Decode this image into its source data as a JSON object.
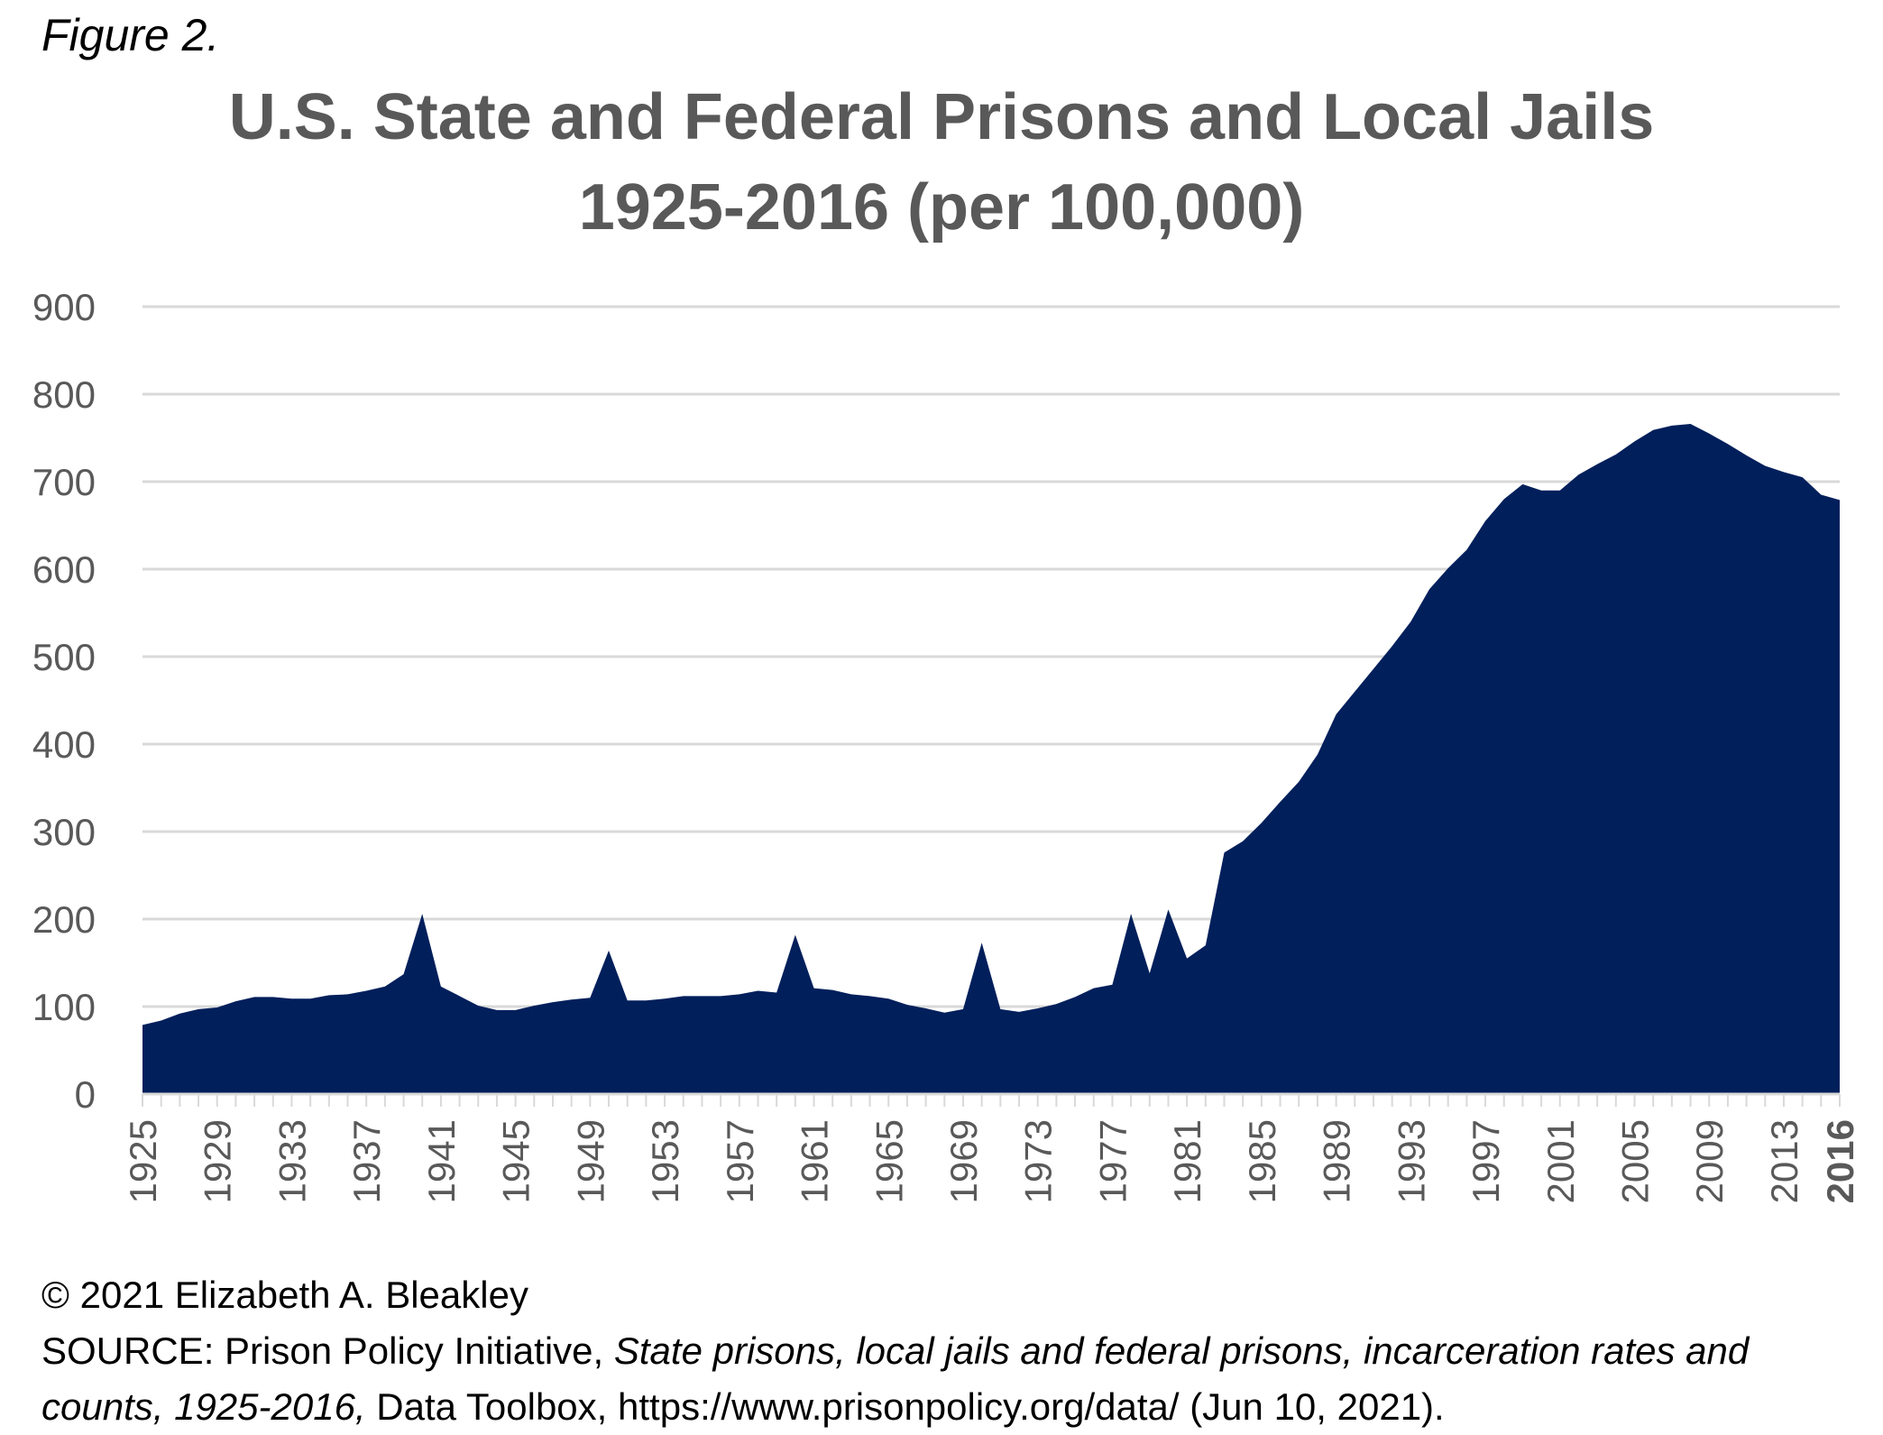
{
  "figure_label": "Figure 2.",
  "caption": {
    "copyright": "© 2021 Elizabeth A. Bleakley",
    "source_prefix": "SOURCE: Prison Policy Initiative, ",
    "source_title": "State prisons, local jails and federal prisons, incarceration rates and counts, 1925-2016,",
    "source_suffix": " Data Toolbox, https://www.prisonpolicy.org/data/ (Jun 10, 2021)."
  },
  "colors": {
    "area_fill": "#001f5b",
    "grid": "#d9d9d9",
    "text": "#595959"
  },
  "chart_data": {
    "type": "area",
    "title": "U.S. State and Federal Prisons and Local Jails",
    "subtitle": "1925-2016 (per 100,000)",
    "xlabel": "",
    "ylabel": "",
    "ylim": [
      0,
      900
    ],
    "yticks": [
      0,
      100,
      200,
      300,
      400,
      500,
      600,
      700,
      800,
      900
    ],
    "xlim": [
      1925,
      2016
    ],
    "xtick_labels": [
      "1925",
      "1929",
      "1933",
      "1937",
      "1941",
      "1945",
      "1949",
      "1953",
      "1957",
      "1961",
      "1965",
      "1969",
      "1973",
      "1977",
      "1981",
      "1985",
      "1989",
      "1993",
      "1997",
      "2001",
      "2005",
      "2009",
      "2013",
      "2016"
    ],
    "grid": true,
    "legend": "none",
    "x": [
      1925,
      1926,
      1927,
      1928,
      1929,
      1930,
      1931,
      1932,
      1933,
      1934,
      1935,
      1936,
      1937,
      1938,
      1939,
      1940,
      1941,
      1942,
      1943,
      1944,
      1945,
      1946,
      1947,
      1948,
      1949,
      1950,
      1951,
      1952,
      1953,
      1954,
      1955,
      1956,
      1957,
      1958,
      1959,
      1960,
      1961,
      1962,
      1963,
      1964,
      1965,
      1966,
      1967,
      1968,
      1969,
      1970,
      1971,
      1972,
      1973,
      1974,
      1975,
      1976,
      1977,
      1978,
      1979,
      1980,
      1981,
      1982,
      1983,
      1984,
      1985,
      1986,
      1987,
      1988,
      1989,
      1990,
      1991,
      1992,
      1993,
      1994,
      1995,
      1996,
      1997,
      1998,
      1999,
      2000,
      2001,
      2002,
      2003,
      2004,
      2005,
      2006,
      2007,
      2008,
      2009,
      2010,
      2011,
      2012,
      2013,
      2014,
      2015,
      2016
    ],
    "values": [
      79,
      84,
      92,
      97,
      99,
      106,
      111,
      111,
      109,
      109,
      113,
      114,
      118,
      123,
      137,
      206,
      123,
      112,
      101,
      96,
      96,
      101,
      105,
      108,
      110,
      164,
      107,
      107,
      109,
      112,
      112,
      112,
      114,
      118,
      116,
      182,
      121,
      119,
      114,
      112,
      109,
      102,
      98,
      93,
      97,
      173,
      97,
      94,
      98,
      103,
      111,
      121,
      125,
      206,
      138,
      211,
      155,
      170,
      276,
      289,
      310,
      334,
      357,
      388,
      434,
      460,
      486,
      512,
      540,
      577,
      601,
      622,
      655,
      680,
      697,
      690,
      690,
      708,
      720,
      731,
      746,
      759,
      764,
      766,
      755,
      743,
      730,
      718,
      711,
      705,
      685,
      679
    ]
  }
}
